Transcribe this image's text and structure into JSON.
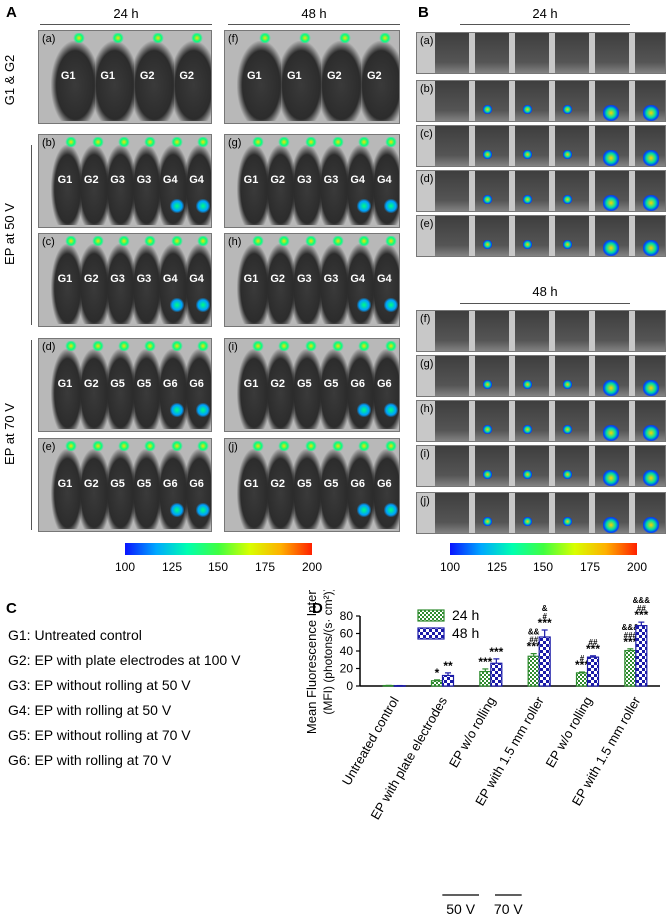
{
  "panels": {
    "A": {
      "letter": "A",
      "times": [
        "24 h",
        "48 h"
      ]
    },
    "B": {
      "letter": "B",
      "times": [
        "24 h",
        "48 h"
      ]
    },
    "C": {
      "letter": "C"
    },
    "D": {
      "letter": "D"
    }
  },
  "row_labels": {
    "g1g2": "G1 & G2",
    "ep50": "EP at 50 V",
    "ep70": "EP at 70 V"
  },
  "a_sublabels": [
    "(a)",
    "(b)",
    "(c)",
    "(d)",
    "(e)"
  ],
  "a_sublabels_48": [
    "(f)",
    "(g)",
    "(h)",
    "(i)",
    "(j)"
  ],
  "b_sublabels_24": [
    "(a)",
    "(b)",
    "(c)",
    "(d)",
    "(e)"
  ],
  "b_sublabels_48": [
    "(f)",
    "(g)",
    "(h)",
    "(i)",
    "(j)"
  ],
  "mouse_groups": {
    "row_a": [
      "G1",
      "G1",
      "G2",
      "G2"
    ],
    "row_b": [
      "G1",
      "G2",
      "G3",
      "G3",
      "G4",
      "G4"
    ],
    "row_c": [
      "G1",
      "G2",
      "G3",
      "G3",
      "G4",
      "G4"
    ],
    "row_d": [
      "G1",
      "G2",
      "G5",
      "G5",
      "G6",
      "G6"
    ],
    "row_e": [
      "G1",
      "G2",
      "G5",
      "G5",
      "G6",
      "G6"
    ]
  },
  "colorbar_ticks": [
    "100",
    "125",
    "150",
    "175",
    "200"
  ],
  "legend_c": [
    "G1: Untreated control",
    "G2: EP with plate electrodes at 100 V",
    "G3: EP without rolling at 50 V",
    "G4: EP with rolling at 50 V",
    "G5: EP without rolling at 70 V",
    "G6: EP with rolling at 70 V"
  ],
  "chart_data": {
    "type": "bar",
    "ylabel": "Mean Fluorescence Intensity",
    "ylabel2": "(MFI)   (photons/(s· cm²))",
    "ylim": [
      0,
      80
    ],
    "yticks": [
      "0",
      "20",
      "40",
      "60",
      "80"
    ],
    "categories": [
      "Untreated control",
      "EP with plate electrodes",
      "EP w/o rolling",
      "EP with 1.5 mm roller",
      "EP w/o rolling",
      "EP with 1.5 mm roller"
    ],
    "series": [
      {
        "name": "24 h",
        "values": [
          0.5,
          6,
          16.5,
          34,
          15,
          40.5
        ],
        "errors": [
          0.2,
          1,
          3,
          3,
          1,
          2
        ],
        "color": "#2e8b2e"
      },
      {
        "name": "48 h",
        "values": [
          0.3,
          12,
          26,
          56,
          33,
          69
        ],
        "errors": [
          0.2,
          3,
          5,
          8,
          1.5,
          4
        ],
        "color": "#1a1aa8"
      }
    ],
    "annotations_24": [
      "",
      "*",
      "***",
      "&&\n##\n***",
      "#\n***",
      "&&&\n###\n***"
    ],
    "annotations_48": [
      "",
      "**",
      "***",
      "&\n#\n***",
      "##\n***",
      "&&&\n##\n***"
    ],
    "groups": [
      {
        "label": "50 V"
      },
      {
        "label": "70 V"
      }
    ]
  }
}
